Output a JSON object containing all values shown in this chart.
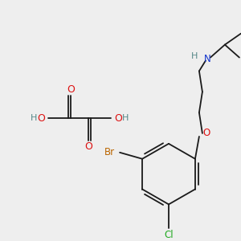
{
  "bg_color": "#eeeeee",
  "fig_size": [
    3.0,
    3.0
  ],
  "dpi": 100,
  "line_color": "#1a1a1a",
  "line_width": 1.3,
  "colors": {
    "O": "#dd1111",
    "N": "#1133cc",
    "Br": "#bb6600",
    "Cl": "#22aa22",
    "H": "#558888"
  }
}
